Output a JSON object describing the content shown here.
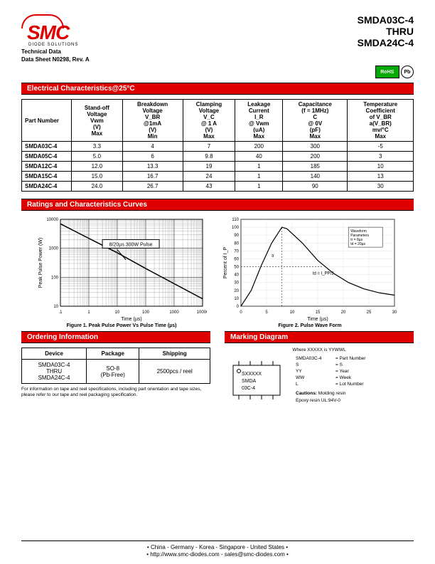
{
  "title_block": {
    "line1": "SMDA03C-4",
    "line2": "THRU",
    "line3": "SMDA24C-4"
  },
  "logo": {
    "text": "SMC",
    "sub": "DIODE SOLUTIONS"
  },
  "tech": {
    "line1": "Technical Data",
    "line2": "Data Sheet N0298, Rev. A"
  },
  "badges": {
    "rohs": "RoHS",
    "pb": "Pb"
  },
  "sections": {
    "elec": "Electrical Characteristics@25°C",
    "curves": "Ratings and Characteristics Curves",
    "order": "Ordering Information",
    "marking": "Marking Diagram"
  },
  "elec_table": {
    "headers": [
      "Part Number",
      "Stand-off Voltage Vwm (V) Max",
      "Breakdown Voltage V_BR @1mA (V) Min",
      "Clamping Voltage V_C @ 1 A (V) Max",
      "Leakage Current I_R @ Vwm (uA) Max",
      "Capacitance (f = 1MHz) C @ 0V (pF) Max",
      "Temperature Coefficient of V_BR a(V_BR) mv/°C Max"
    ],
    "header_lines": {
      "c0": [
        "",
        "",
        "",
        "Part Number",
        "",
        ""
      ],
      "c1": [
        "Stand-off",
        "Voltage",
        "Vwm",
        "(V)",
        "Max"
      ],
      "c2": [
        "Breakdown",
        "Voltage",
        "V_BR",
        "@1mA",
        "(V)",
        "Min"
      ],
      "c3": [
        "Clamping",
        "Voltage",
        "V_C",
        "@ 1 A",
        "(V)",
        "Max"
      ],
      "c4": [
        "Leakage",
        "Current",
        "I_R",
        "@ Vwm",
        "(uA)",
        "Max"
      ],
      "c5": [
        "Capacitance",
        "(f = 1MHz)",
        "C",
        "@ 0V",
        "(pF)",
        "Max"
      ],
      "c6": [
        "Temperature",
        "Coefficient",
        "of V_BR",
        "a(V_BR)",
        "mv/°C",
        "Max"
      ]
    },
    "rows": [
      [
        "SMDA03C-4",
        "3.3",
        "4",
        "7",
        "200",
        "300",
        "-5"
      ],
      [
        "SMDA05C-4",
        "5.0",
        "6",
        "9.8",
        "40",
        "200",
        "3"
      ],
      [
        "SMDA12C-4",
        "12.0",
        "13.3",
        "19",
        "1",
        "185",
        "10"
      ],
      [
        "SMDA15C-4",
        "15.0",
        "16.7",
        "24",
        "1",
        "140",
        "13"
      ],
      [
        "SMDA24C-4",
        "24.0",
        "26.7",
        "43",
        "1",
        "90",
        "30"
      ]
    ]
  },
  "chart1": {
    "type": "line-loglog",
    "title": "Figure 1. Peak Pulse Power Vs Pulse Time (µs)",
    "xlabel": "Time (µs)",
    "ylabel": "Peak Pulse Power (W)",
    "xlim": [
      0.1,
      10000
    ],
    "ylim": [
      10,
      10000
    ],
    "xticks": [
      ".1",
      "1",
      "10",
      "100",
      "1000",
      "10000"
    ],
    "yticks": [
      "10",
      "100",
      "1000",
      "10000"
    ],
    "annotation": "8/20µs 300W Pulse",
    "line_points": [
      [
        0.1,
        7000
      ],
      [
        1,
        2200
      ],
      [
        10,
        700
      ],
      [
        100,
        200
      ],
      [
        1000,
        60
      ],
      [
        10000,
        18
      ]
    ],
    "line_color": "#000",
    "grid_color": "#000",
    "bg": "#fff"
  },
  "chart2": {
    "type": "line-linear",
    "title": "Figure 2. Pulse Wave Form",
    "xlabel": "Time (µs)",
    "ylabel": "Percent of I_P",
    "xlim": [
      0,
      30
    ],
    "ylim": [
      0,
      110
    ],
    "xticks": [
      "0",
      "5",
      "10",
      "15",
      "20",
      "25",
      "30"
    ],
    "yticks": [
      "0",
      "10",
      "20",
      "30",
      "40",
      "50",
      "60",
      "70",
      "80",
      "90",
      "100",
      "110"
    ],
    "annotations": {
      "wave": "Waveform\nParameters\ntr = 8µs\ntd = 20µs",
      "tf": "tr",
      "td": "td = I_PP/2"
    },
    "line_points": [
      [
        0,
        0
      ],
      [
        2,
        20
      ],
      [
        4,
        52
      ],
      [
        6,
        80
      ],
      [
        8,
        100
      ],
      [
        9,
        98
      ],
      [
        12,
        80
      ],
      [
        15,
        58
      ],
      [
        18,
        42
      ],
      [
        21,
        30
      ],
      [
        24,
        22
      ],
      [
        27,
        17
      ],
      [
        30,
        14
      ]
    ],
    "line_color": "#000",
    "grid_color": "#ccc",
    "bg": "#fff"
  },
  "order_table": {
    "headers": [
      "Device",
      "Package",
      "Shipping"
    ],
    "rows": [
      [
        "SMDA03C-4\nTHRU\nSMDA24C-4",
        "SO-8\n(Pb-Free)",
        "2500pcs / reel"
      ]
    ]
  },
  "order_note": "For information on tape and reel specifications, including part orientation and tape sizes, please refer to our tape and reel packaging specification.",
  "marking": {
    "where": "Where XXXXX is YYWWL",
    "chip_lines": [
      "SXXXXX",
      "SMDA",
      "03C-4"
    ],
    "rows": [
      [
        "SMDA03C-4",
        "= Part Number"
      ],
      [
        "S",
        "= S"
      ],
      [
        "YY",
        "= Year"
      ],
      [
        "WW",
        "= Week"
      ],
      [
        "L",
        "= Lot Number"
      ]
    ],
    "caution_label": "Cautions:",
    "caution": " Molding resin\n     Epoxy resin UL:94V-0"
  },
  "footer": {
    "countries": "•  China  -  Germany  -  Korea  -  Singapore  -  United States •",
    "web": "•  http://www.smc-diodes.com  -  sales@smc-diodes.com •"
  },
  "colors": {
    "brand": "#d00000",
    "text": "#000000",
    "rohs_bg": "#00a000"
  }
}
